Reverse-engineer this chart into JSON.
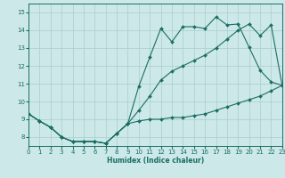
{
  "xlabel": "Humidex (Indice chaleur)",
  "xlim": [
    0,
    23
  ],
  "ylim": [
    7.5,
    15.5
  ],
  "xticks": [
    0,
    1,
    2,
    3,
    4,
    5,
    6,
    7,
    8,
    9,
    10,
    11,
    12,
    13,
    14,
    15,
    16,
    17,
    18,
    19,
    20,
    21,
    22,
    23
  ],
  "yticks": [
    8,
    9,
    10,
    11,
    12,
    13,
    14,
    15
  ],
  "bg_color": "#cce8e8",
  "line_color": "#1a6e64",
  "grid_color": "#aacece",
  "line1_y": [
    9.3,
    8.9,
    8.55,
    8.0,
    7.75,
    7.75,
    7.75,
    7.65,
    8.2,
    8.75,
    8.9,
    9.0,
    9.0,
    9.1,
    9.1,
    9.2,
    9.3,
    9.5,
    9.7,
    9.9,
    10.1,
    10.3,
    10.6,
    10.9
  ],
  "line2_y": [
    9.3,
    8.9,
    8.55,
    8.0,
    7.75,
    7.75,
    7.75,
    7.65,
    8.2,
    8.75,
    10.85,
    12.5,
    14.1,
    13.35,
    14.2,
    14.2,
    14.1,
    14.75,
    14.3,
    14.35,
    13.05,
    11.75,
    11.1,
    10.9
  ],
  "line3_y": [
    9.3,
    8.9,
    8.55,
    8.0,
    7.75,
    7.75,
    7.75,
    7.65,
    8.2,
    8.75,
    9.5,
    10.3,
    11.2,
    11.7,
    12.0,
    12.3,
    12.6,
    13.0,
    13.5,
    14.0,
    14.35,
    13.7,
    14.3,
    10.9
  ]
}
